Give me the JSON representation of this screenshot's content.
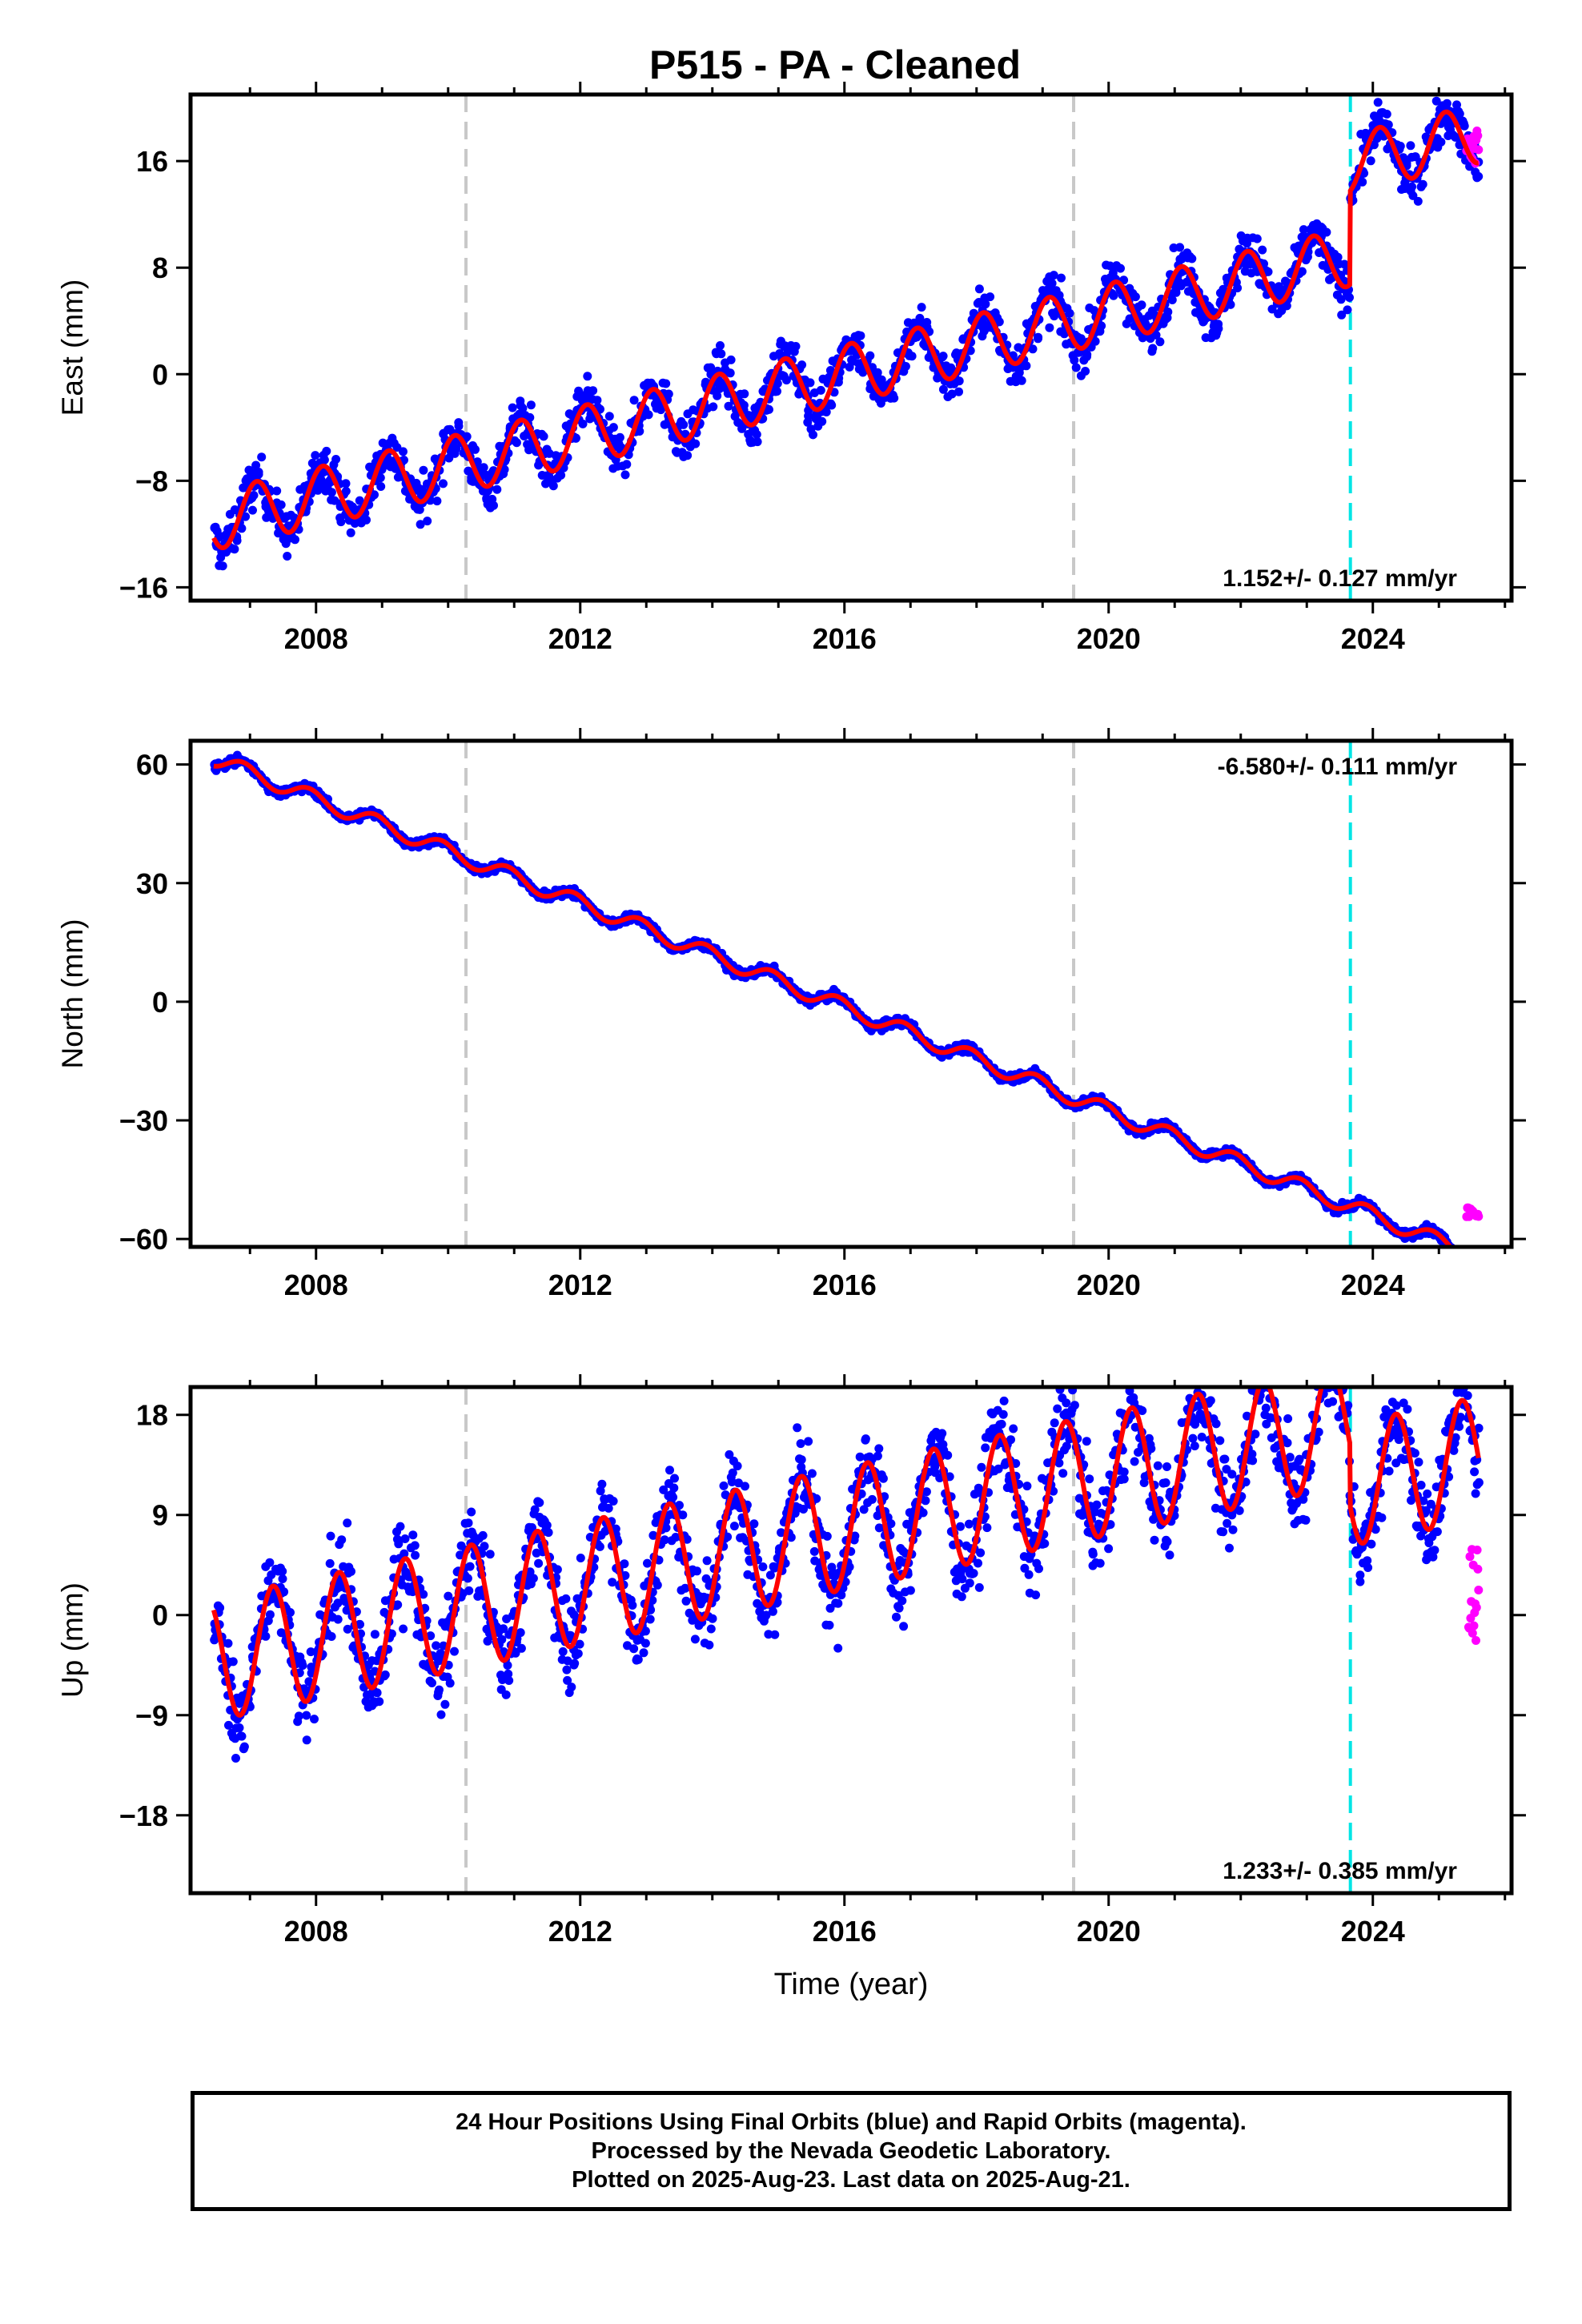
{
  "chart_data": [
    {
      "type": "scatter",
      "title": "P515  - PA - Cleaned",
      "ylabel": "East (mm)",
      "xlabel": "",
      "xlim": [
        2006.1,
        2026.1
      ],
      "ylim": [
        -17,
        21
      ],
      "x_ticks": [
        2008,
        2012,
        2016,
        2020,
        2024
      ],
      "y_ticks": [
        16,
        8,
        0,
        -8,
        -16
      ],
      "rate_label": "1.152+/- 0.127 mm/yr",
      "model": {
        "start": 2006.45,
        "end": 2025.6,
        "intercept": -11.0,
        "slope": 1.152,
        "seasonal_amplitude": 2.2,
        "seasonal_phase": 0.15,
        "offset_epoch": 2023.65,
        "offset_mm": 7.0
      },
      "scatter_noise_mm": 1.6,
      "rapid_points": {
        "start": 2025.42,
        "end": 2025.6,
        "center_mm": 17.0,
        "spread_mm": 3.0
      },
      "event_lines": [
        {
          "epoch": 2010.27,
          "color": "#c8c8c8"
        },
        {
          "epoch": 2019.47,
          "color": "#c8c8c8"
        },
        {
          "epoch": 2023.66,
          "color": "#00e5e5"
        }
      ],
      "grid": false,
      "series": [
        {
          "name": "Final Orbits",
          "color": "#0000ff"
        },
        {
          "name": "Rapid Orbits",
          "color": "#ff00ff"
        },
        {
          "name": "Model fit",
          "color": "#ff0000"
        }
      ]
    },
    {
      "type": "scatter",
      "title": "",
      "ylabel": "North (mm)",
      "xlabel": "",
      "xlim": [
        2006.1,
        2026.1
      ],
      "ylim": [
        -62,
        66
      ],
      "x_ticks": [
        2008,
        2012,
        2016,
        2020,
        2024
      ],
      "y_ticks": [
        60,
        30,
        0,
        -30,
        -60
      ],
      "rate_label": "-6.580+/- 0.111 mm/yr",
      "model": {
        "start": 2006.45,
        "end": 2025.6,
        "intercept": 61.5,
        "slope": -6.58,
        "seasonal_amplitude": 2.0,
        "seasonal_phase": 0.35,
        "offset_epoch": 2023.65,
        "offset_mm": 0.0
      },
      "scatter_noise_mm": 1.0,
      "rapid_points": {
        "start": 2025.42,
        "end": 2025.6,
        "center_mm": -53.5,
        "spread_mm": 3.0
      },
      "event_lines": [
        {
          "epoch": 2010.27,
          "color": "#c8c8c8"
        },
        {
          "epoch": 2019.47,
          "color": "#c8c8c8"
        },
        {
          "epoch": 2023.66,
          "color": "#00e5e5"
        }
      ],
      "grid": false,
      "series": [
        {
          "name": "Final Orbits",
          "color": "#0000ff"
        },
        {
          "name": "Rapid Orbits",
          "color": "#ff00ff"
        },
        {
          "name": "Model fit",
          "color": "#ff0000"
        }
      ]
    },
    {
      "type": "scatter",
      "title": "",
      "ylabel": "Up (mm)",
      "xlabel": "Time (year)",
      "xlim": [
        2006.1,
        2026.1
      ],
      "ylim": [
        -25,
        20.5
      ],
      "x_ticks": [
        2008,
        2012,
        2016,
        2020,
        2024
      ],
      "y_ticks": [
        18,
        9,
        0,
        -9,
        -18
      ],
      "rate_label": "1.233+/- 0.385 mm/yr",
      "model": {
        "start": 2006.45,
        "end": 2025.6,
        "intercept": -4.0,
        "slope": 1.233,
        "seasonal_amplitude": 5.5,
        "seasonal_phase": 0.9,
        "offset_epoch": 2023.65,
        "offset_mm": -5.5
      },
      "scatter_noise_mm": 3.6,
      "rapid_points": {
        "start": 2025.45,
        "end": 2025.6,
        "center_mm": 1.5,
        "spread_mm": 9.0
      },
      "event_lines": [
        {
          "epoch": 2010.27,
          "color": "#c8c8c8"
        },
        {
          "epoch": 2019.47,
          "color": "#c8c8c8"
        },
        {
          "epoch": 2023.66,
          "color": "#00e5e5"
        }
      ],
      "grid": false,
      "series": [
        {
          "name": "Final Orbits",
          "color": "#0000ff"
        },
        {
          "name": "Rapid Orbits",
          "color": "#ff00ff"
        },
        {
          "name": "Model fit",
          "color": "#ff0000"
        }
      ]
    }
  ],
  "caption": {
    "line1": "24 Hour Positions Using Final Orbits (blue) and Rapid Orbits (magenta).",
    "line2": "Processed by the Nevada Geodetic Laboratory.",
    "line3": "Plotted on 2025-Aug-23. Last data on 2025-Aug-21."
  }
}
